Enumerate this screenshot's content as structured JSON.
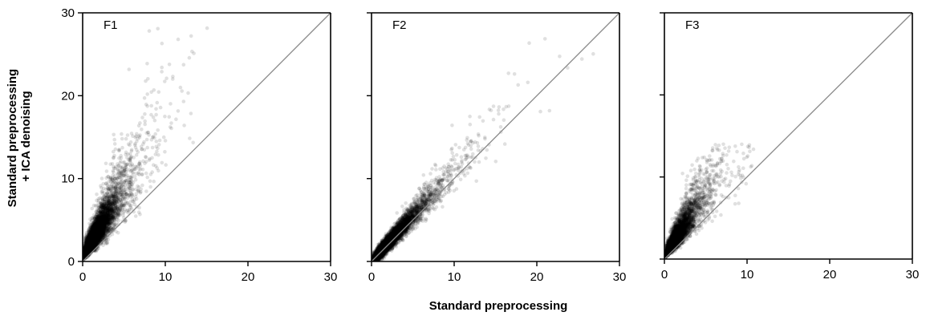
{
  "figure": {
    "xlabel": "Standard preprocessing",
    "ylabel_line1": "Standard preprocessing",
    "ylabel_line2": "+ ICA denoising"
  },
  "chart_data": [
    {
      "type": "scatter",
      "title": "F1",
      "xlim": [
        0,
        30
      ],
      "ylim": [
        0,
        30
      ],
      "xticks": [
        0,
        10,
        20,
        30
      ],
      "yticks": [
        0,
        10,
        20,
        30
      ],
      "reference_line": "y = x",
      "marker_color": "#000000",
      "y_tick_labels_shown": true,
      "cloud": {
        "approx_points": 6000,
        "x_center": 1.5,
        "y_over_x_ratio": 1.6,
        "x_max": 16.5,
        "y_max": 28.5
      }
    },
    {
      "type": "scatter",
      "title": "F2",
      "xlim": [
        0,
        30
      ],
      "ylim": [
        0,
        30
      ],
      "xticks": [
        0,
        10,
        20,
        30
      ],
      "yticks": [
        0,
        10,
        20,
        30
      ],
      "reference_line": "y = x",
      "marker_color": "#000000",
      "y_tick_labels_shown": false,
      "cloud": {
        "approx_points": 6000,
        "x_center": 2.0,
        "y_over_x_ratio": 1.1,
        "x_max": 29,
        "y_max": 29
      }
    },
    {
      "type": "scatter",
      "title": "F3",
      "xlim": [
        0,
        30
      ],
      "ylim": [
        0,
        30
      ],
      "xticks": [
        0,
        10,
        20,
        30
      ],
      "yticks": [
        0,
        10,
        20,
        30
      ],
      "reference_line": "y = x",
      "marker_color": "#000000",
      "y_tick_labels_shown": false,
      "cloud": {
        "approx_points": 4500,
        "x_center": 1.4,
        "y_over_x_ratio": 1.5,
        "x_max": 11,
        "y_max": 14
      }
    }
  ]
}
